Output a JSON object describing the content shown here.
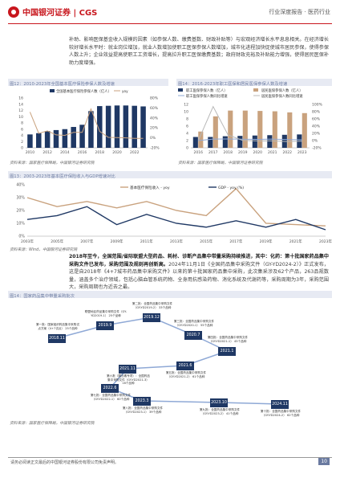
{
  "header": {
    "logo_text": "中国银河证券 | CGS",
    "right_text": "行业深度报告 · 医药行业"
  },
  "para1": "补助、影响医保基金收入规模的因素（如参保人数、缴费基数、财政补贴等）与宏观经济增长水平息息相关。在经济增长较好增长水平时：就业岗位增加，就业人数增加使职工医保参保人数增加，城市化进程加快促使城市居民参保，使得参保人数上升；企业效益提高使职工工资增长，提高拉升职工医保缴费基数；政府财政充裕及补贴能力增强，使得居民医保补助力度增强。",
  "fig12": {
    "title": "图12：2010-2023年全国基本医疗保险参保人数及增速",
    "source": "资料来源：国家医疗保障局，中国银河证券研究院",
    "chart_data": {
      "type": "bar",
      "categories": [
        "2010",
        "2011",
        "2012",
        "2013",
        "2014",
        "2015",
        "2016",
        "2017",
        "2018",
        "2019",
        "2020",
        "2021",
        "2022",
        "2023"
      ],
      "series": [
        {
          "name": "全国基本医疗保险参保人数（亿人）",
          "values": [
            4.3,
            4.7,
            5.4,
            5.7,
            6.0,
            6.7,
            7.4,
            11.8,
            13.4,
            13.5,
            13.6,
            13.6,
            13.5,
            13.3
          ]
        },
        {
          "name": "yoy",
          "values": [
            52,
            9,
            14,
            6,
            5,
            11,
            11,
            58,
            13,
            1,
            0.5,
            0,
            -1,
            -1
          ]
        }
      ],
      "y_left": [
        0,
        16
      ],
      "y_right": [
        -20,
        80
      ],
      "y_left_ticks": [
        "0",
        "2",
        "4",
        "6",
        "8",
        "10",
        "12",
        "14",
        "16"
      ],
      "y_right_ticks": [
        "-20%",
        "0%",
        "20%",
        "40%",
        "60%",
        "80%"
      ],
      "x_ticks": [
        "2010",
        "2012",
        "2014",
        "2016",
        "2018",
        "2020",
        "2022"
      ]
    }
  },
  "fig14": {
    "title": "图14：2016-2023年职工医保和居民医保参保人数及增速",
    "source": "资料来源：国家医疗保障局，中国银河证券研究院",
    "chart_data": {
      "type": "bar",
      "categories": [
        "2016",
        "2017",
        "2018",
        "2019",
        "2020",
        "2021",
        "2022",
        "2023"
      ],
      "series": [
        {
          "name": "职工医保参保人数（亿人）",
          "values": [
            3.0,
            3.0,
            3.2,
            3.3,
            3.4,
            3.5,
            3.6,
            3.7
          ]
        },
        {
          "name": "居民医保参保人数（亿人）",
          "values": [
            4.5,
            8.7,
            10.3,
            10.3,
            10.2,
            10.1,
            9.8,
            9.6
          ]
        },
        {
          "name": "职工医保参保人数同比增速",
          "values": [
            0,
            4.3,
            4.4,
            4.1,
            3.3,
            4.2,
            2.8,
            2.2
          ]
        },
        {
          "name": "居民医保参保人数同比增速",
          "values": [
            0,
            94,
            16,
            0.2,
            -0.8,
            -0.8,
            -2.8,
            -1.8
          ]
        }
      ],
      "y_left": [
        0,
        12
      ],
      "y_right": [
        -20,
        100
      ],
      "y_left_ticks": [
        "0",
        "2",
        "4",
        "6",
        "8",
        "10",
        "12"
      ],
      "y_right_ticks": [
        "-20%",
        "0%",
        "20%",
        "40%",
        "60%",
        "80%",
        "100%"
      ],
      "x_ticks": [
        "2016",
        "2017",
        "2018",
        "2019",
        "2020",
        "2021",
        "2022",
        "2023"
      ]
    }
  },
  "fig13": {
    "title": "图13：2003-2023年基本医疗保险收入与GDP增速对比",
    "source": "资料来源：Wind，中国银河证券研究院",
    "chart_data": {
      "type": "line",
      "x": [
        "2003年",
        "2005年",
        "2007年",
        "2009年",
        "2011年",
        "2013年",
        "2015年",
        "2017年",
        "2019年",
        "2021年",
        "2023年"
      ],
      "series": [
        {
          "name": "基本医疗保险收入 - yoy",
          "values": [
            30,
            23,
            27,
            22,
            27,
            20,
            16,
            37,
            10,
            9,
            8
          ]
        },
        {
          "name": "GDP - yoy (%)",
          "values": [
            13,
            16,
            23,
            9,
            17,
            10,
            7,
            12,
            7,
            13,
            5
          ]
        }
      ],
      "ylim": [
        0,
        40
      ],
      "y_ticks": [
        "0%",
        "10%",
        "20%",
        "30%",
        "40%"
      ]
    }
  },
  "para2": {
    "bold": "2018年至今，全国范围/省际联盟大型药品、耗材、诊断产品集中带量采购持续推进，其中：化药：第十批国家药品集中采购文件已发布，采购范围及规则再创新高。",
    "normal": "2024年11月1日《全国药品集中采购文件（GY-YD2024-2）》正式发布，这是自2018年《4+7城市药品集中采购文件》以来的第十批国家药品集中采购，此次集采涉及62个产品，263品规数量，涵盖多个治疗领域，包括心脑血管系统药物、全身用抗感染药物、消化系统及代谢药等，采购周期为3年，采购范围大，采购周期也为近去之最。"
  },
  "fig14b": {
    "title": "图14：国家药品集中带量采购批次",
    "source": "资料来源：国家医疗保障局，中国银河证券研究院",
    "dates": [
      "2018.11",
      "2019.9",
      "2019.12",
      "2020.7",
      "2021.1",
      "2021.6",
      "2021.11",
      "2022.6",
      "2023.3",
      "2023.10",
      "2024.11"
    ],
    "notes": [
      "第一批：国家组织药品集中采购试点方案（4+7试点）",
      "联盟地区药品集中采购文件（GY-YD2019-1）",
      "第二批：全国药品集中采购文件（GY-YD2019-2）",
      "第三批：全国药品集中采购文件（GY-YD2020-1）",
      "第四批：全国药品集中采购文件（GY-YD2021-1）",
      "第五批：全国药品集中采购文件（GY-YD2021-2）",
      "第六批（胰岛素专项）：全国药品集中采购文件（GY-YD2021-3）",
      "第七批：全国药品集中采购文件（GY-YD2022-1）",
      "第八批：全国药品集中采购文件（GY-YD2023-1）",
      "第九批：全国药品集中采购文件（GY-YD2023-2）",
      "第十批：全国药品集中采购文件（GY-YD2024-2）"
    ],
    "counts": [
      "25个品种",
      "25个品种",
      "33个品种",
      "55个品种",
      "45个品种",
      "61个品种",
      "16个品种",
      "60个品种",
      "39个品种",
      "41个品种",
      "62个品种"
    ]
  },
  "footer": {
    "disclaimer": "请务必阅读正文最后的中国银河证券股份有限公司免责声明。",
    "page": "10"
  },
  "colors": {
    "brand_red": "#c8161d",
    "navy": "#1f3864",
    "orange": "#c9a27e",
    "blue": "#2f6db5"
  }
}
